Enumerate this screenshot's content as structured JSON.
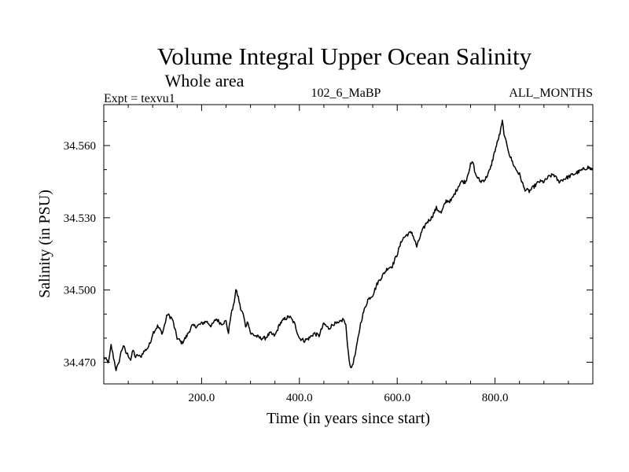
{
  "chart_data": {
    "type": "line",
    "title": "Volume Integral Upper Ocean Salinity",
    "subtitle": "Whole area",
    "left_label": "Expt = texvu1",
    "center_label": "102_6_MaBP",
    "right_label": "ALL_MONTHS",
    "xlabel": "Time (in years since start)",
    "ylabel": "Salinity (in PSU)",
    "xlim": [
      0,
      1000
    ],
    "ylim": [
      34.461,
      34.577
    ],
    "x_ticks": [
      200,
      400,
      600,
      800
    ],
    "x_tick_labels": [
      "200.0",
      "400.0",
      "600.0",
      "800.0"
    ],
    "y_ticks": [
      34.47,
      34.5,
      34.53,
      34.56
    ],
    "y_tick_labels": [
      "34.470",
      "34.500",
      "34.530",
      "34.560"
    ],
    "grid": false,
    "series": [
      {
        "name": "Salinity",
        "x": [
          0,
          10,
          15,
          20,
          25,
          30,
          35,
          40,
          45,
          50,
          55,
          60,
          65,
          70,
          75,
          80,
          85,
          90,
          95,
          100,
          110,
          120,
          130,
          140,
          150,
          160,
          170,
          180,
          190,
          200,
          210,
          220,
          230,
          240,
          250,
          255,
          260,
          265,
          270,
          275,
          280,
          285,
          290,
          295,
          300,
          310,
          320,
          330,
          340,
          350,
          360,
          370,
          380,
          390,
          400,
          410,
          420,
          430,
          440,
          450,
          460,
          470,
          480,
          490,
          495,
          500,
          505,
          510,
          515,
          520,
          525,
          530,
          540,
          550,
          560,
          570,
          580,
          590,
          600,
          610,
          620,
          630,
          640,
          650,
          660,
          670,
          680,
          690,
          700,
          710,
          720,
          730,
          740,
          750,
          755,
          760,
          770,
          780,
          790,
          800,
          810,
          815,
          820,
          825,
          830,
          840,
          850,
          860,
          870,
          880,
          890,
          900,
          910,
          920,
          930,
          940,
          950,
          960,
          970,
          980,
          990,
          1000
        ],
        "values": [
          34.472,
          34.47,
          34.477,
          34.472,
          34.467,
          34.469,
          34.474,
          34.477,
          34.474,
          34.473,
          34.471,
          34.475,
          34.472,
          34.473,
          34.472,
          34.474,
          34.475,
          34.476,
          34.478,
          34.482,
          34.485,
          34.482,
          34.49,
          34.488,
          34.48,
          34.478,
          34.481,
          34.485,
          34.485,
          34.486,
          34.487,
          34.485,
          34.488,
          34.486,
          34.487,
          34.482,
          34.49,
          34.493,
          34.5,
          34.497,
          34.492,
          34.49,
          34.485,
          34.487,
          34.482,
          34.481,
          34.48,
          34.48,
          34.482,
          34.481,
          34.486,
          34.488,
          34.489,
          34.486,
          34.48,
          34.479,
          34.48,
          34.482,
          34.481,
          34.486,
          34.484,
          34.486,
          34.486,
          34.488,
          34.485,
          34.474,
          34.467,
          34.47,
          34.474,
          34.48,
          34.486,
          34.49,
          34.496,
          34.498,
          34.503,
          34.506,
          34.509,
          34.51,
          34.515,
          34.521,
          34.523,
          34.524,
          34.518,
          34.524,
          34.528,
          34.53,
          34.534,
          34.532,
          34.537,
          34.537,
          34.541,
          34.545,
          34.545,
          34.552,
          34.553,
          34.548,
          34.545,
          34.546,
          34.55,
          34.558,
          34.565,
          34.57,
          34.563,
          34.56,
          34.556,
          34.551,
          34.548,
          34.542,
          34.541,
          34.543,
          34.545,
          34.545,
          34.547,
          34.548,
          34.545,
          34.546,
          34.547,
          34.548,
          34.549,
          34.55,
          34.551,
          34.55
        ]
      }
    ]
  }
}
